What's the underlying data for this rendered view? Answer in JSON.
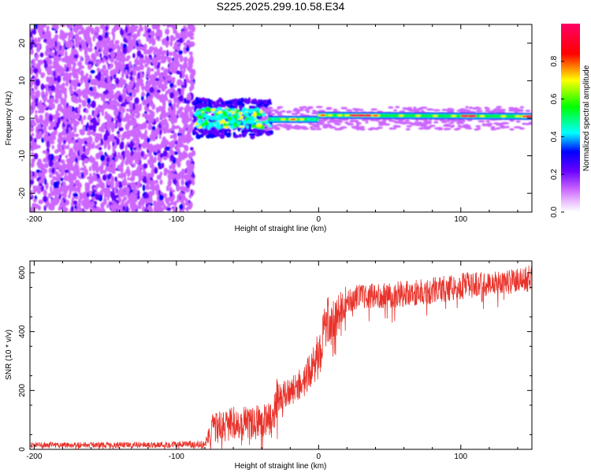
{
  "title": "S225.2025.299.10.58.E34",
  "chart_data": [
    {
      "type": "heatmap",
      "xlabel": "Height of straight line (km)",
      "ylabel": "Frequency (Hz)",
      "xlim": [
        -203,
        150
      ],
      "ylim": [
        -25,
        25
      ],
      "xticks": [
        -200,
        -100,
        0,
        100
      ],
      "yticks": [
        -20,
        -10,
        0,
        10,
        20
      ],
      "colorbar": {
        "label": "Normalized spectral amplitude",
        "range": [
          0,
          1
        ],
        "ticks": [
          0.0,
          0.2,
          0.4,
          0.6,
          0.8
        ],
        "colormap": [
          "#ffffff",
          "#cc66ff",
          "#6600ff",
          "#0000ff",
          "#00ffff",
          "#00ff00",
          "#ffff00",
          "#ff0000",
          "#ff0066"
        ]
      },
      "regions": [
        {
          "x_range": [
            -203,
            -88
          ],
          "freq_range": [
            -25,
            25
          ],
          "amplitude": "low noise (0.0–0.2)"
        },
        {
          "x_range": [
            -88,
            -35
          ],
          "freq_range": [
            -6,
            5
          ],
          "amplitude": "mixed (0.2–0.6)"
        },
        {
          "x_range": [
            -35,
            150
          ],
          "freq_range": [
            -2,
            2
          ],
          "amplitude": "high, centered near 0 Hz (0.4–1.0)"
        }
      ]
    },
    {
      "type": "line",
      "series": [
        {
          "name": "SNR",
          "color": "#e8322a"
        }
      ],
      "xlabel": "Height of straight line (km)",
      "ylabel": "SNR (10 * v/v)",
      "xlim": [
        -203,
        150
      ],
      "ylim": [
        0,
        640
      ],
      "xticks": [
        -200,
        -100,
        0,
        100
      ],
      "yticks": [
        0,
        200,
        400,
        600
      ],
      "envelope": {
        "x": [
          -203,
          -120,
          -80,
          -75,
          -60,
          -40,
          -32,
          -30,
          -25,
          -15,
          -5,
          0,
          5,
          10,
          15,
          20,
          30,
          50,
          75,
          100,
          125,
          150
        ],
        "mean": [
          15,
          15,
          18,
          70,
          85,
          95,
          100,
          170,
          180,
          210,
          270,
          320,
          430,
          430,
          470,
          510,
          520,
          525,
          535,
          555,
          565,
          580
        ],
        "spread": [
          10,
          10,
          12,
          50,
          60,
          60,
          60,
          70,
          50,
          50,
          60,
          80,
          90,
          80,
          60,
          50,
          40,
          45,
          45,
          45,
          40,
          45
        ]
      }
    }
  ]
}
